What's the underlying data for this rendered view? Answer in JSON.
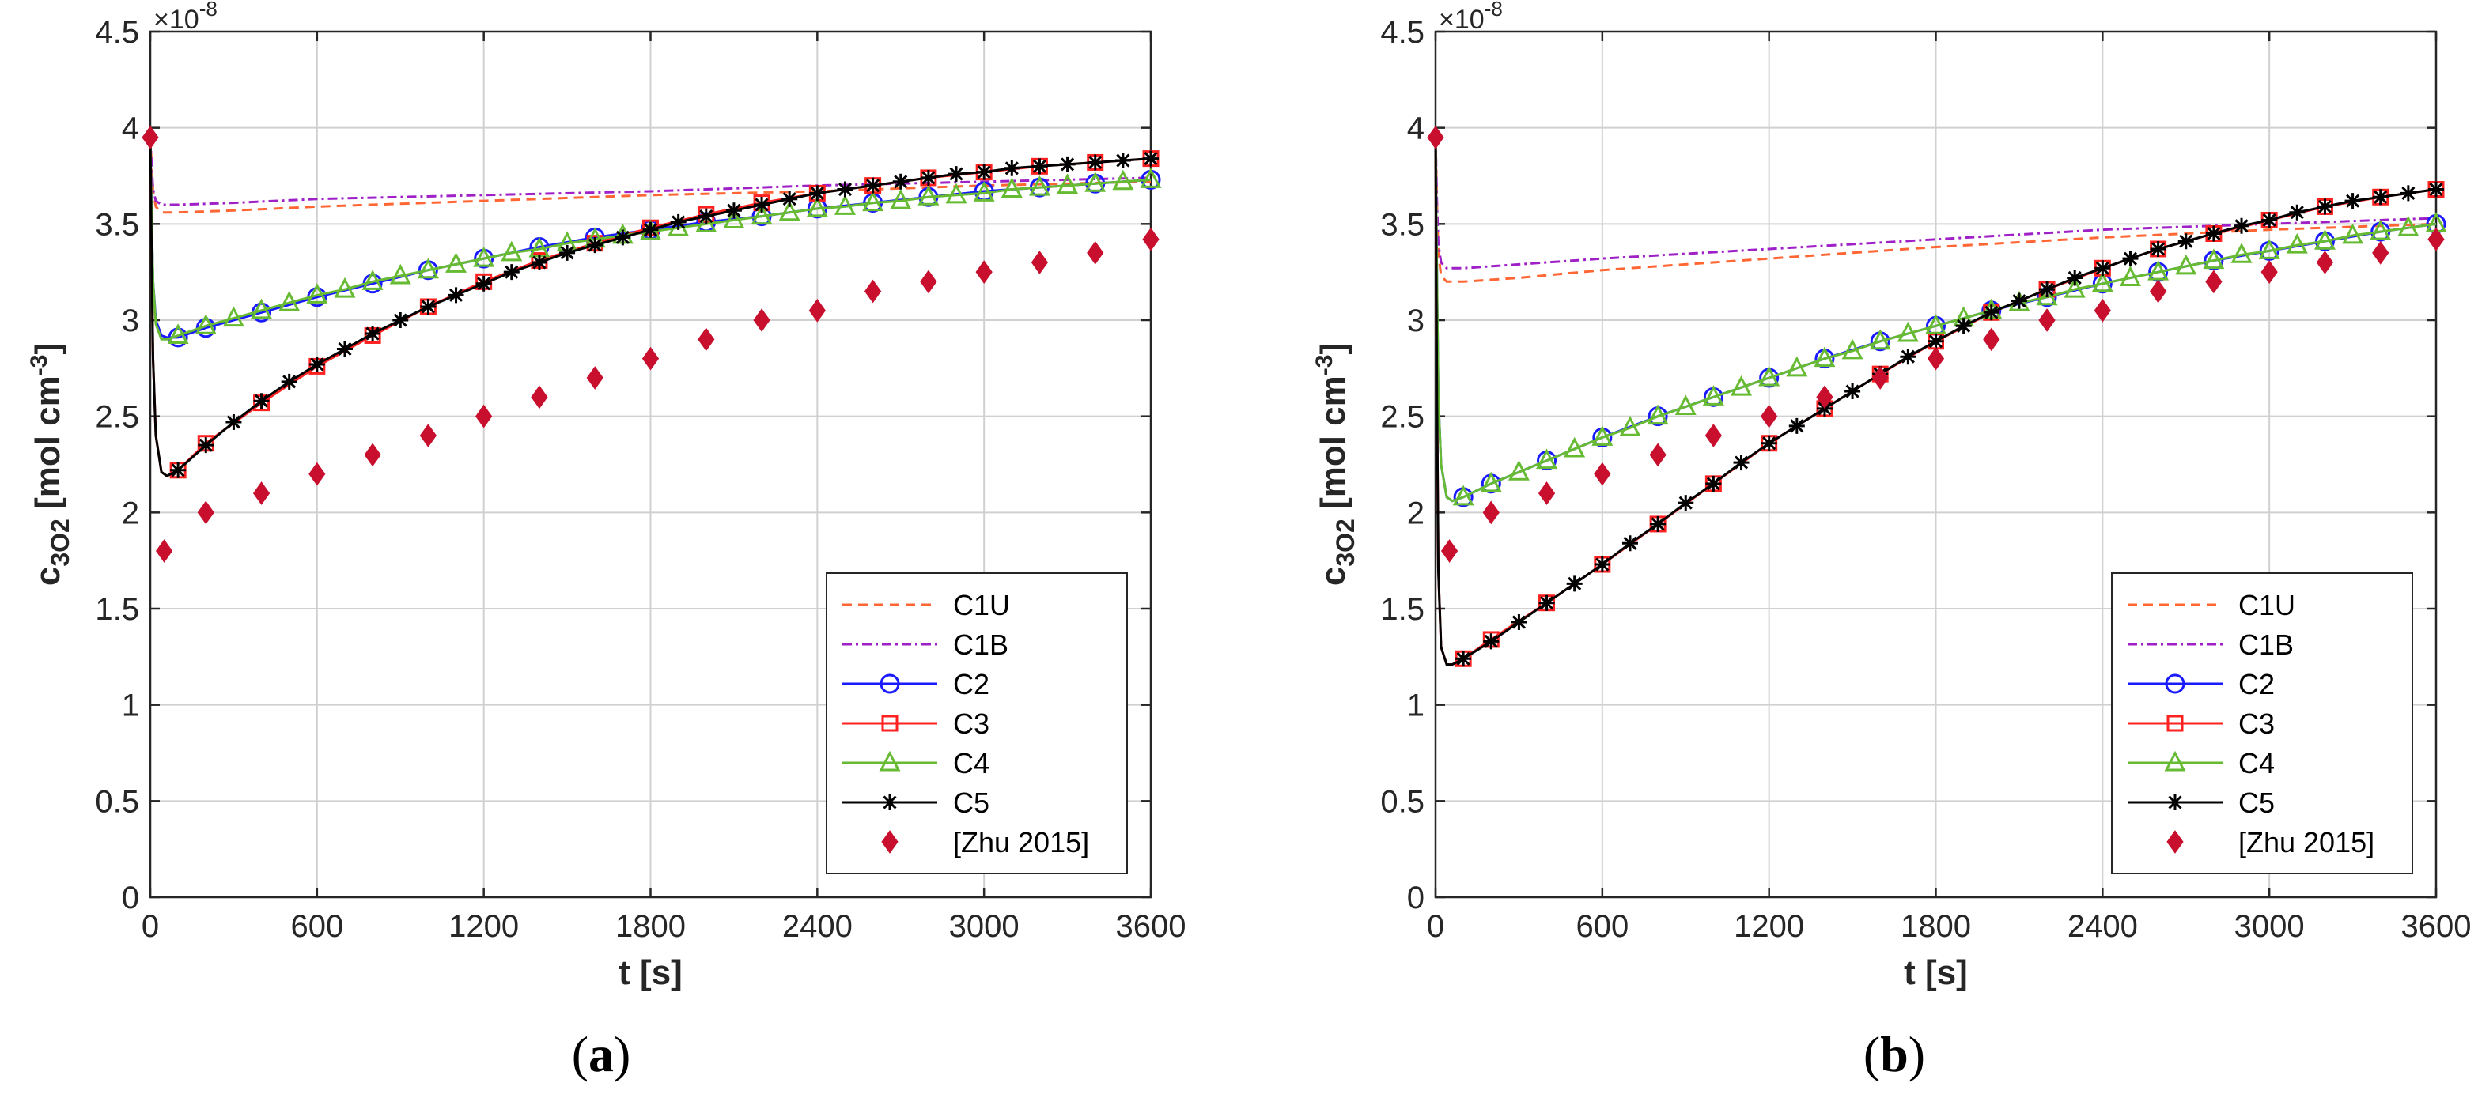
{
  "colors": {
    "C1U": "#ff6633",
    "C1B": "#a020c8",
    "C2": "#1a1aff",
    "C3": "#ff2020",
    "C4": "#66bb33",
    "C5": "#000000",
    "Zhu": "#c8102e"
  },
  "chart_data": [
    {
      "type": "line",
      "panel_label": "(a)",
      "panel_letter": "a",
      "xlabel": "t [s]",
      "ylabel_main": "c",
      "ylabel_sub": "3O2",
      "ylabel_unit": "[mol cm",
      "ylabel_unit_exp": "-3",
      "ylabel_close": "]",
      "y_multiplier": "×10",
      "y_multiplier_exp": "-8",
      "xlim": [
        0,
        3600
      ],
      "ylim": [
        0,
        4.5
      ],
      "xticks": [
        0,
        600,
        1200,
        1800,
        2400,
        3000,
        3600
      ],
      "yticks": [
        0,
        0.5,
        1,
        1.5,
        2,
        2.5,
        3,
        3.5,
        4,
        4.5
      ],
      "xtick_labels": [
        "0",
        "600",
        "1200",
        "1800",
        "2400",
        "3000",
        "3600"
      ],
      "ytick_labels": [
        "0",
        "0.5",
        "1",
        "1.5",
        "2",
        "2.5",
        "3",
        "3.5",
        "4",
        "4.5"
      ],
      "grid": true,
      "legend_position": "bottom-right",
      "series": [
        {
          "name": "C1U",
          "style": "dashed",
          "marker": "none",
          "x": [
            0,
            5,
            10,
            20,
            40,
            100,
            300,
            600,
            1200,
            1800,
            2400,
            3000,
            3600
          ],
          "y": [
            3.95,
            3.8,
            3.67,
            3.59,
            3.56,
            3.56,
            3.57,
            3.59,
            3.62,
            3.65,
            3.67,
            3.7,
            3.72
          ]
        },
        {
          "name": "C1B",
          "style": "dashdot",
          "marker": "none",
          "x": [
            0,
            5,
            10,
            20,
            40,
            100,
            300,
            600,
            1200,
            1800,
            2400,
            3000,
            3600
          ],
          "y": [
            3.95,
            3.8,
            3.68,
            3.62,
            3.6,
            3.6,
            3.61,
            3.63,
            3.65,
            3.67,
            3.7,
            3.72,
            3.74
          ]
        },
        {
          "name": "C2",
          "style": "solid",
          "marker": "circle",
          "x": [
            0,
            5,
            10,
            20,
            40,
            60,
            100,
            200,
            400,
            600,
            800,
            1000,
            1200,
            1400,
            1600,
            1800,
            2000,
            2200,
            2400,
            2600,
            2800,
            3000,
            3200,
            3400,
            3600
          ],
          "y": [
            3.95,
            3.5,
            3.2,
            3.0,
            2.92,
            2.91,
            2.91,
            2.96,
            3.04,
            3.12,
            3.19,
            3.26,
            3.32,
            3.38,
            3.43,
            3.47,
            3.51,
            3.54,
            3.58,
            3.61,
            3.64,
            3.67,
            3.69,
            3.71,
            3.73
          ]
        },
        {
          "name": "C3",
          "style": "solid",
          "marker": "square",
          "x": [
            0,
            5,
            10,
            20,
            40,
            60,
            100,
            200,
            400,
            600,
            800,
            1000,
            1200,
            1400,
            1600,
            1800,
            2000,
            2200,
            2400,
            2600,
            2800,
            3000,
            3200,
            3400,
            3600
          ],
          "y": [
            3.95,
            3.3,
            2.8,
            2.4,
            2.21,
            2.19,
            2.22,
            2.36,
            2.57,
            2.76,
            2.92,
            3.07,
            3.2,
            3.31,
            3.4,
            3.48,
            3.55,
            3.61,
            3.66,
            3.7,
            3.74,
            3.77,
            3.8,
            3.82,
            3.84
          ]
        },
        {
          "name": "C4",
          "style": "solid",
          "marker": "triangle",
          "x": [
            0,
            5,
            10,
            20,
            40,
            60,
            100,
            200,
            300,
            400,
            500,
            600,
            700,
            800,
            900,
            1000,
            1100,
            1200,
            1300,
            1400,
            1500,
            1600,
            1700,
            1800,
            1900,
            2000,
            2100,
            2200,
            2300,
            2400,
            2500,
            2600,
            2700,
            2800,
            2900,
            3000,
            3100,
            3200,
            3300,
            3400,
            3500,
            3600
          ],
          "y": [
            3.95,
            3.5,
            3.2,
            2.98,
            2.9,
            2.9,
            2.92,
            2.97,
            3.01,
            3.05,
            3.09,
            3.13,
            3.16,
            3.2,
            3.23,
            3.26,
            3.29,
            3.32,
            3.35,
            3.37,
            3.4,
            3.42,
            3.44,
            3.46,
            3.48,
            3.5,
            3.52,
            3.54,
            3.56,
            3.58,
            3.59,
            3.61,
            3.62,
            3.64,
            3.65,
            3.66,
            3.68,
            3.69,
            3.7,
            3.71,
            3.72,
            3.73
          ]
        },
        {
          "name": "C5",
          "style": "solid",
          "marker": "asterisk",
          "x": [
            0,
            5,
            10,
            20,
            40,
            60,
            100,
            200,
            300,
            400,
            500,
            600,
            700,
            800,
            900,
            1000,
            1100,
            1200,
            1300,
            1400,
            1500,
            1600,
            1700,
            1800,
            1900,
            2000,
            2100,
            2200,
            2300,
            2400,
            2500,
            2600,
            2700,
            2800,
            2900,
            3000,
            3100,
            3200,
            3300,
            3400,
            3500,
            3600
          ],
          "y": [
            3.95,
            3.3,
            2.8,
            2.4,
            2.21,
            2.19,
            2.22,
            2.35,
            2.47,
            2.58,
            2.68,
            2.77,
            2.85,
            2.93,
            3.0,
            3.07,
            3.13,
            3.19,
            3.25,
            3.3,
            3.35,
            3.39,
            3.43,
            3.47,
            3.51,
            3.54,
            3.57,
            3.6,
            3.63,
            3.66,
            3.68,
            3.7,
            3.72,
            3.74,
            3.76,
            3.77,
            3.79,
            3.8,
            3.81,
            3.82,
            3.83,
            3.84
          ]
        },
        {
          "name": "[Zhu 2015]",
          "style": "none",
          "marker": "diamond",
          "x": [
            0,
            50,
            200,
            400,
            600,
            800,
            1000,
            1200,
            1400,
            1600,
            1800,
            2000,
            2200,
            2400,
            2600,
            2800,
            3000,
            3200,
            3400,
            3600
          ],
          "y": [
            3.95,
            1.8,
            2.0,
            2.1,
            2.2,
            2.3,
            2.4,
            2.5,
            2.6,
            2.7,
            2.8,
            2.9,
            3.0,
            3.05,
            3.15,
            3.2,
            3.25,
            3.3,
            3.35,
            3.42
          ]
        }
      ]
    },
    {
      "type": "line",
      "panel_label": "(b)",
      "panel_letter": "b",
      "xlabel": "t [s]",
      "ylabel_main": "c",
      "ylabel_sub": "3O2",
      "ylabel_unit": "[mol cm",
      "ylabel_unit_exp": "-3",
      "ylabel_close": "]",
      "y_multiplier": "×10",
      "y_multiplier_exp": "-8",
      "xlim": [
        0,
        3600
      ],
      "ylim": [
        0,
        4.5
      ],
      "xticks": [
        0,
        600,
        1200,
        1800,
        2400,
        3000,
        3600
      ],
      "yticks": [
        0,
        0.5,
        1,
        1.5,
        2,
        2.5,
        3,
        3.5,
        4,
        4.5
      ],
      "xtick_labels": [
        "0",
        "600",
        "1200",
        "1800",
        "2400",
        "3000",
        "3600"
      ],
      "ytick_labels": [
        "0",
        "0.5",
        "1",
        "1.5",
        "2",
        "2.5",
        "3",
        "3.5",
        "4",
        "4.5"
      ],
      "grid": true,
      "legend_position": "bottom-right",
      "series": [
        {
          "name": "C1U",
          "style": "dashed",
          "marker": "none",
          "x": [
            0,
            5,
            10,
            20,
            40,
            100,
            300,
            600,
            1200,
            1800,
            2400,
            3000,
            3600
          ],
          "y": [
            3.95,
            3.6,
            3.35,
            3.23,
            3.2,
            3.2,
            3.22,
            3.26,
            3.32,
            3.38,
            3.43,
            3.47,
            3.5
          ]
        },
        {
          "name": "C1B",
          "style": "dashdot",
          "marker": "none",
          "x": [
            0,
            5,
            10,
            20,
            40,
            100,
            300,
            600,
            1200,
            1800,
            2400,
            3000,
            3600
          ],
          "y": [
            3.95,
            3.6,
            3.4,
            3.3,
            3.27,
            3.27,
            3.29,
            3.32,
            3.37,
            3.42,
            3.47,
            3.5,
            3.53
          ]
        },
        {
          "name": "C2",
          "style": "solid",
          "marker": "circle",
          "x": [
            0,
            5,
            10,
            20,
            40,
            60,
            100,
            200,
            400,
            600,
            800,
            1000,
            1200,
            1400,
            1600,
            1800,
            2000,
            2200,
            2400,
            2600,
            2800,
            3000,
            3200,
            3400,
            3600
          ],
          "y": [
            3.95,
            3.2,
            2.6,
            2.25,
            2.08,
            2.06,
            2.08,
            2.15,
            2.27,
            2.39,
            2.5,
            2.6,
            2.7,
            2.8,
            2.89,
            2.97,
            3.05,
            3.12,
            3.19,
            3.25,
            3.31,
            3.36,
            3.41,
            3.46,
            3.5
          ]
        },
        {
          "name": "C3",
          "style": "solid",
          "marker": "square",
          "x": [
            0,
            5,
            10,
            20,
            40,
            60,
            100,
            200,
            400,
            600,
            800,
            1000,
            1200,
            1400,
            1600,
            1800,
            2000,
            2200,
            2400,
            2600,
            2800,
            3000,
            3200,
            3400,
            3600
          ],
          "y": [
            3.95,
            2.6,
            1.7,
            1.3,
            1.21,
            1.21,
            1.24,
            1.34,
            1.53,
            1.73,
            1.94,
            2.15,
            2.36,
            2.54,
            2.72,
            2.89,
            3.04,
            3.16,
            3.27,
            3.37,
            3.45,
            3.52,
            3.59,
            3.64,
            3.68
          ]
        },
        {
          "name": "C4",
          "style": "solid",
          "marker": "triangle",
          "x": [
            0,
            5,
            10,
            20,
            40,
            60,
            100,
            200,
            300,
            400,
            500,
            600,
            700,
            800,
            900,
            1000,
            1100,
            1200,
            1300,
            1400,
            1500,
            1600,
            1700,
            1800,
            1900,
            2000,
            2100,
            2200,
            2300,
            2400,
            2500,
            2600,
            2700,
            2800,
            2900,
            3000,
            3100,
            3200,
            3300,
            3400,
            3500,
            3600
          ],
          "y": [
            3.95,
            3.2,
            2.6,
            2.25,
            2.08,
            2.06,
            2.08,
            2.15,
            2.21,
            2.27,
            2.33,
            2.39,
            2.44,
            2.5,
            2.55,
            2.6,
            2.65,
            2.7,
            2.75,
            2.8,
            2.84,
            2.89,
            2.93,
            2.97,
            3.01,
            3.05,
            3.09,
            3.12,
            3.16,
            3.19,
            3.22,
            3.25,
            3.28,
            3.31,
            3.34,
            3.36,
            3.39,
            3.41,
            3.44,
            3.46,
            3.48,
            3.5
          ]
        },
        {
          "name": "C5",
          "style": "solid",
          "marker": "asterisk",
          "x": [
            0,
            5,
            10,
            20,
            40,
            60,
            100,
            200,
            300,
            400,
            500,
            600,
            700,
            800,
            900,
            1000,
            1100,
            1200,
            1300,
            1400,
            1500,
            1600,
            1700,
            1800,
            1900,
            2000,
            2100,
            2200,
            2300,
            2400,
            2500,
            2600,
            2700,
            2800,
            2900,
            3000,
            3100,
            3200,
            3300,
            3400,
            3500,
            3600
          ],
          "y": [
            3.95,
            2.6,
            1.7,
            1.3,
            1.21,
            1.21,
            1.24,
            1.33,
            1.43,
            1.53,
            1.63,
            1.73,
            1.84,
            1.94,
            2.05,
            2.15,
            2.26,
            2.36,
            2.45,
            2.54,
            2.63,
            2.72,
            2.81,
            2.89,
            2.97,
            3.04,
            3.1,
            3.16,
            3.22,
            3.27,
            3.32,
            3.37,
            3.41,
            3.45,
            3.49,
            3.52,
            3.56,
            3.59,
            3.62,
            3.64,
            3.66,
            3.68
          ]
        },
        {
          "name": "[Zhu 2015]",
          "style": "none",
          "marker": "diamond",
          "x": [
            0,
            50,
            200,
            400,
            600,
            800,
            1000,
            1200,
            1400,
            1600,
            1800,
            2000,
            2200,
            2400,
            2600,
            2800,
            3000,
            3200,
            3400,
            3600
          ],
          "y": [
            3.95,
            1.8,
            2.0,
            2.1,
            2.2,
            2.3,
            2.4,
            2.5,
            2.6,
            2.7,
            2.8,
            2.9,
            3.0,
            3.05,
            3.15,
            3.2,
            3.25,
            3.3,
            3.35,
            3.42
          ]
        }
      ]
    }
  ]
}
